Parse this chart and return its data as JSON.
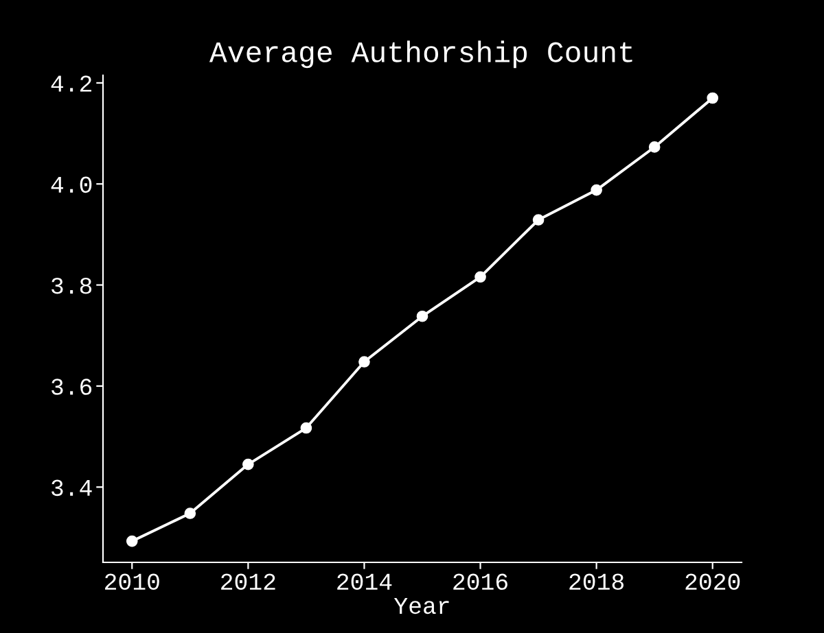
{
  "chart_data": {
    "type": "line",
    "title": "Average Authorship Count",
    "xlabel": "Year",
    "series": [
      {
        "color": "#ffffff",
        "x": [
          2010,
          2011,
          2012,
          2013,
          2014,
          2015,
          2016,
          2017,
          2018,
          2019,
          2020
        ],
        "values": [
          3.293,
          3.348,
          3.445,
          3.517,
          3.648,
          3.738,
          3.816,
          3.929,
          3.988,
          4.073,
          4.17
        ]
      }
    ],
    "xlim": [
      2009.5,
      2020.5
    ],
    "xticks": [
      2010,
      2012,
      2014,
      2016,
      2018,
      2020
    ],
    "ylim": [
      3.251,
      4.215
    ],
    "yticks": [
      3.4,
      3.6,
      3.8,
      {
        "value": 4,
        "label": "4.0"
      },
      4.2
    ],
    "marker": "circle",
    "line_style": "solid",
    "grid": false,
    "legend": false
  }
}
